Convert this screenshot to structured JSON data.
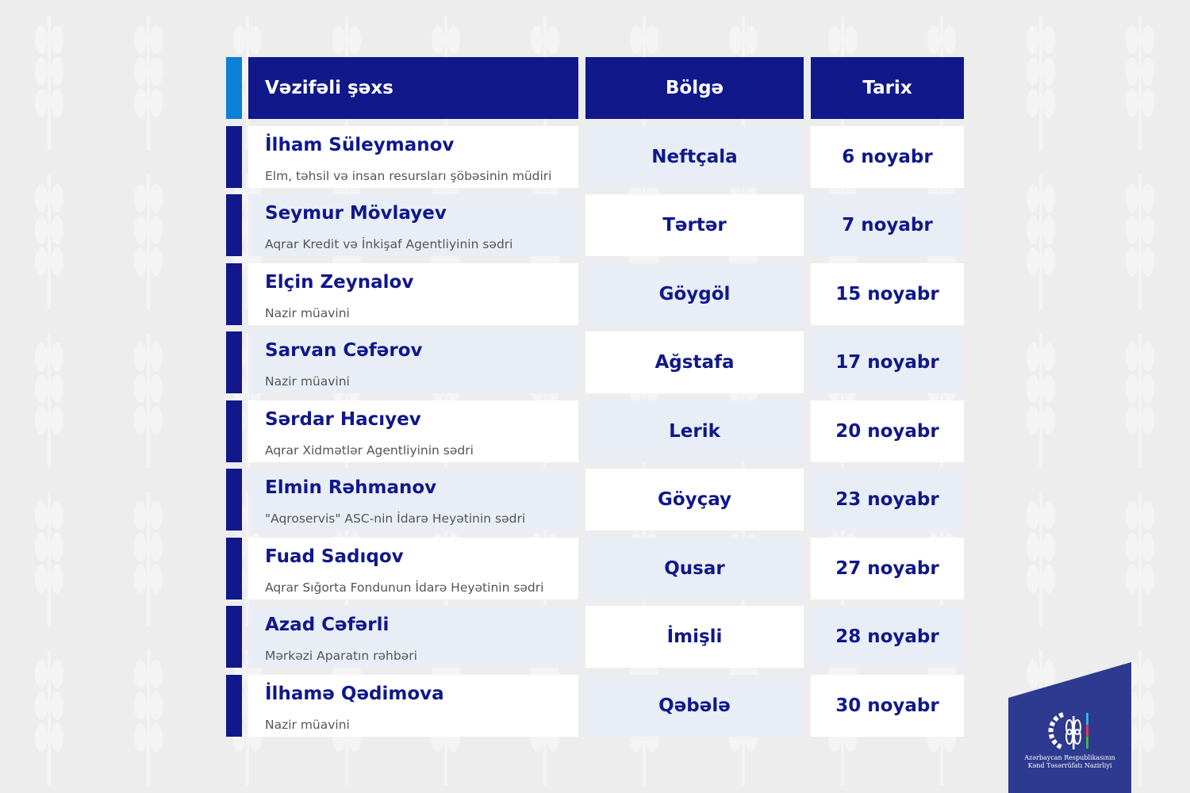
{
  "headers": {
    "person": "Vəzifəli şəxs",
    "region": "Bölgə",
    "date": "Tarix"
  },
  "rows": [
    {
      "name": "İlham Süleymanov",
      "role": "Elm, təhsil və insan resursları şöbəsinin müdiri",
      "region": "Neftçala",
      "date": "6 noyabr"
    },
    {
      "name": "Seymur Mövlayev",
      "role": "Aqrar Kredit və İnkişaf Agentliyinin sədri",
      "region": "Tərtər",
      "date": "7 noyabr"
    },
    {
      "name": "Elçin Zeynalov",
      "role": "Nazir müavini",
      "region": "Göygöl",
      "date": "15 noyabr"
    },
    {
      "name": "Sarvan Cəfərov",
      "role": "Nazir müavini",
      "region": "Ağstafa",
      "date": "17 noyabr"
    },
    {
      "name": "Sərdar Hacıyev",
      "role": "Aqrar Xidmətlər Agentliyinin sədri",
      "region": "Lerik",
      "date": "20 noyabr"
    },
    {
      "name": "Elmin Rəhmanov",
      "role": "\"Aqroservis\" ASC-nin İdarə Heyətinin sədri",
      "region": "Göyçay",
      "date": "23 noyabr"
    },
    {
      "name": "Fuad Sadıqov",
      "role": "Aqrar Sığorta Fondunun İdarə Heyətinin sədri",
      "region": "Qusar",
      "date": "27 noyabr"
    },
    {
      "name": "Azad Cəfərli",
      "role": "Mərkəzi Aparatın rəhbəri",
      "region": "İmişli",
      "date": "28 noyabr"
    },
    {
      "name": "İlhamə Qədimova",
      "role": "Nazir müavini",
      "region": "Qəbələ",
      "date": "30 noyabr"
    }
  ],
  "logo": {
    "line1": "Azərbaycan Respublikasının",
    "line2": "Kənd Təsərrüfatı Nazirliyi"
  },
  "colors": {
    "header": "#10188a",
    "accent": "#0a80d6",
    "row_light": "#e9eef6",
    "logo_bg": "#2e3a8f"
  }
}
